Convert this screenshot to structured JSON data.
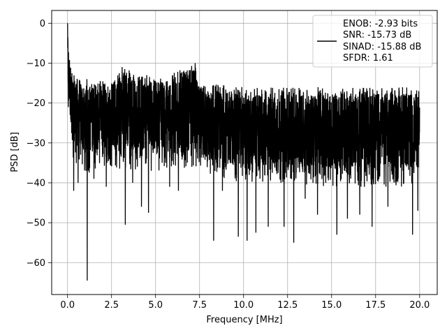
{
  "chart_data": {
    "type": "line",
    "title": "",
    "xlabel": "Frequency [MHz]",
    "ylabel": "PSD [dB]",
    "xlim": [
      -0.9,
      21.0
    ],
    "ylim": [
      -68,
      3.2
    ],
    "xticks": [
      0.0,
      2.5,
      5.0,
      7.5,
      10.0,
      12.5,
      15.0,
      17.5,
      20.0
    ],
    "xtick_labels": [
      "0.0",
      "2.5",
      "5.0",
      "7.5",
      "10.0",
      "12.5",
      "15.0",
      "17.5",
      "20.0"
    ],
    "yticks": [
      0,
      -10,
      -20,
      -30,
      -40,
      -50,
      -60
    ],
    "ytick_labels": [
      "0",
      "−10",
      "−20",
      "−30",
      "−40",
      "−50",
      "−60"
    ],
    "grid": true,
    "legend_position": "top-right",
    "line_color": "#000000",
    "legend_lines": [
      "ENOB: -2.93 bits",
      "SNR: -15.73 dB",
      "SINAD: -15.88 dB",
      "SFDR: 1.61"
    ],
    "series": [
      {
        "x_range": [
          0.0,
          20.0
        ],
        "envelope": [
          {
            "x": 0.0,
            "upper": 0,
            "lower": -21,
            "mean": -8
          },
          {
            "x": 0.1,
            "upper": -7,
            "lower": -23,
            "mean": -15
          },
          {
            "x": 0.3,
            "upper": -13,
            "lower": -35,
            "mean": -21
          },
          {
            "x": 1.0,
            "upper": -15,
            "lower": -38,
            "mean": -24
          },
          {
            "x": 2.5,
            "upper": -14,
            "lower": -36,
            "mean": -23
          },
          {
            "x": 3.2,
            "upper": -11,
            "lower": -37,
            "mean": -22
          },
          {
            "x": 5.0,
            "upper": -14,
            "lower": -37,
            "mean": -23
          },
          {
            "x": 7.2,
            "upper": -10,
            "lower": -36,
            "mean": -21
          },
          {
            "x": 7.5,
            "upper": -15,
            "lower": -38,
            "mean": -25
          },
          {
            "x": 10.0,
            "upper": -16,
            "lower": -40,
            "mean": -27
          },
          {
            "x": 12.5,
            "upper": -16,
            "lower": -40,
            "mean": -27
          },
          {
            "x": 15.0,
            "upper": -16,
            "lower": -41,
            "mean": -27
          },
          {
            "x": 17.5,
            "upper": -16,
            "lower": -41,
            "mean": -27
          },
          {
            "x": 20.0,
            "upper": -16,
            "lower": -41,
            "mean": -27
          }
        ],
        "dips": [
          {
            "x": 0.05,
            "y": -21
          },
          {
            "x": 0.15,
            "y": -23
          },
          {
            "x": 0.35,
            "y": -42
          },
          {
            "x": 0.6,
            "y": -40
          },
          {
            "x": 1.12,
            "y": -64.5
          },
          {
            "x": 1.5,
            "y": -39
          },
          {
            "x": 2.2,
            "y": -41
          },
          {
            "x": 3.28,
            "y": -50.5
          },
          {
            "x": 3.7,
            "y": -40
          },
          {
            "x": 4.2,
            "y": -46
          },
          {
            "x": 4.6,
            "y": -47.5
          },
          {
            "x": 5.8,
            "y": -41
          },
          {
            "x": 6.3,
            "y": -42
          },
          {
            "x": 8.3,
            "y": -54.5
          },
          {
            "x": 8.8,
            "y": -42
          },
          {
            "x": 9.7,
            "y": -53.5
          },
          {
            "x": 10.2,
            "y": -54.5
          },
          {
            "x": 10.7,
            "y": -52.5
          },
          {
            "x": 11.4,
            "y": -51
          },
          {
            "x": 12.3,
            "y": -51
          },
          {
            "x": 12.85,
            "y": -55
          },
          {
            "x": 13.5,
            "y": -44
          },
          {
            "x": 14.2,
            "y": -48
          },
          {
            "x": 15.3,
            "y": -53
          },
          {
            "x": 15.9,
            "y": -49
          },
          {
            "x": 16.6,
            "y": -48
          },
          {
            "x": 17.3,
            "y": -51
          },
          {
            "x": 18.2,
            "y": -46
          },
          {
            "x": 19.6,
            "y": -53
          },
          {
            "x": 19.9,
            "y": -47
          }
        ],
        "peaks": [
          {
            "x": 0.0,
            "y": 0
          },
          {
            "x": 1.1,
            "y": -14
          },
          {
            "x": 3.1,
            "y": -11
          },
          {
            "x": 3.25,
            "y": -11.5
          },
          {
            "x": 4.5,
            "y": -13
          },
          {
            "x": 7.25,
            "y": -10
          },
          {
            "x": 8.5,
            "y": -17
          },
          {
            "x": 9.9,
            "y": -16
          },
          {
            "x": 13.2,
            "y": -17
          },
          {
            "x": 14.3,
            "y": -17
          },
          {
            "x": 18.6,
            "y": -17
          },
          {
            "x": 19.95,
            "y": -17
          }
        ]
      }
    ]
  }
}
